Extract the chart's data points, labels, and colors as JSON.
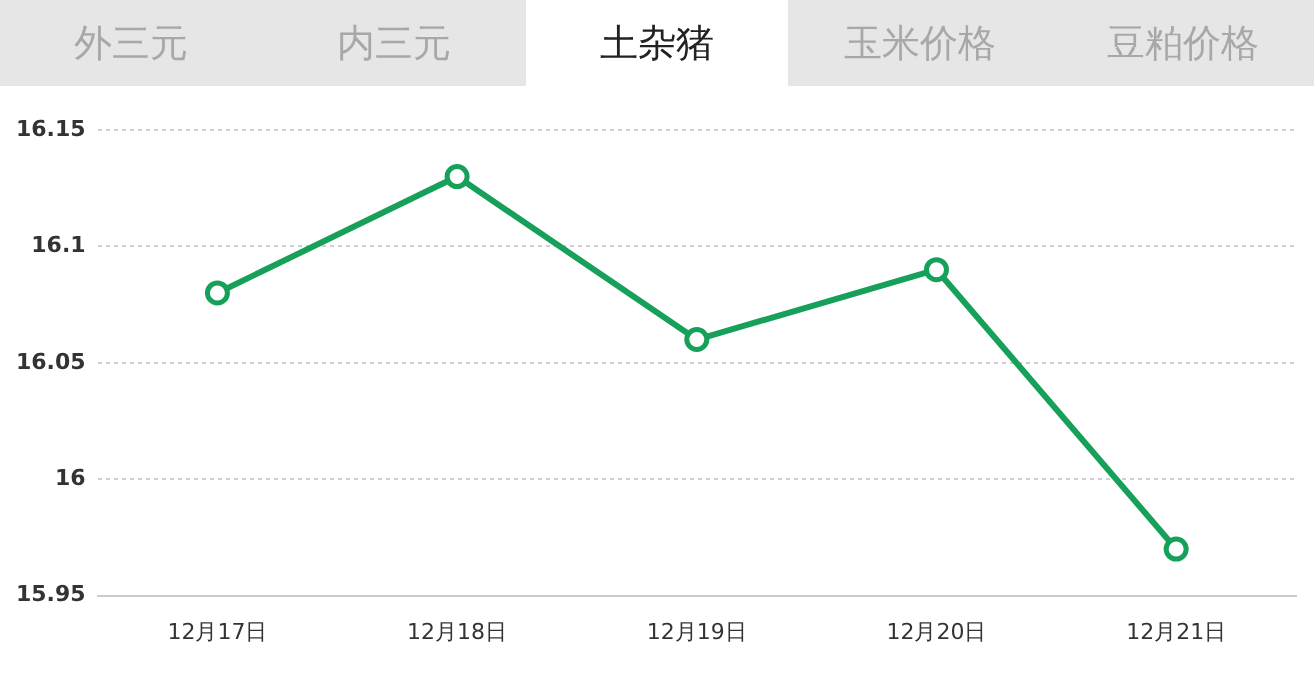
{
  "chart_data": {
    "type": "line",
    "title": "土杂猪",
    "annotations": [
      "外三元",
      "内三元",
      "玉米价格",
      "豆粕价格"
    ],
    "categories": [
      "12月17日",
      "12月18日",
      "12月19日",
      "12月20日",
      "12月21日"
    ],
    "series": [
      {
        "color": "#16a05a",
        "values": [
          16.08,
          16.13,
          16.06,
          16.09,
          15.97
        ]
      }
    ],
    "ylim": [
      15.95,
      16.15
    ],
    "yticks": [
      15.95,
      16,
      16.05,
      16.1,
      16.15
    ],
    "grid": "y",
    "marker": "circle",
    "line_style": "solid",
    "legend": false
  }
}
